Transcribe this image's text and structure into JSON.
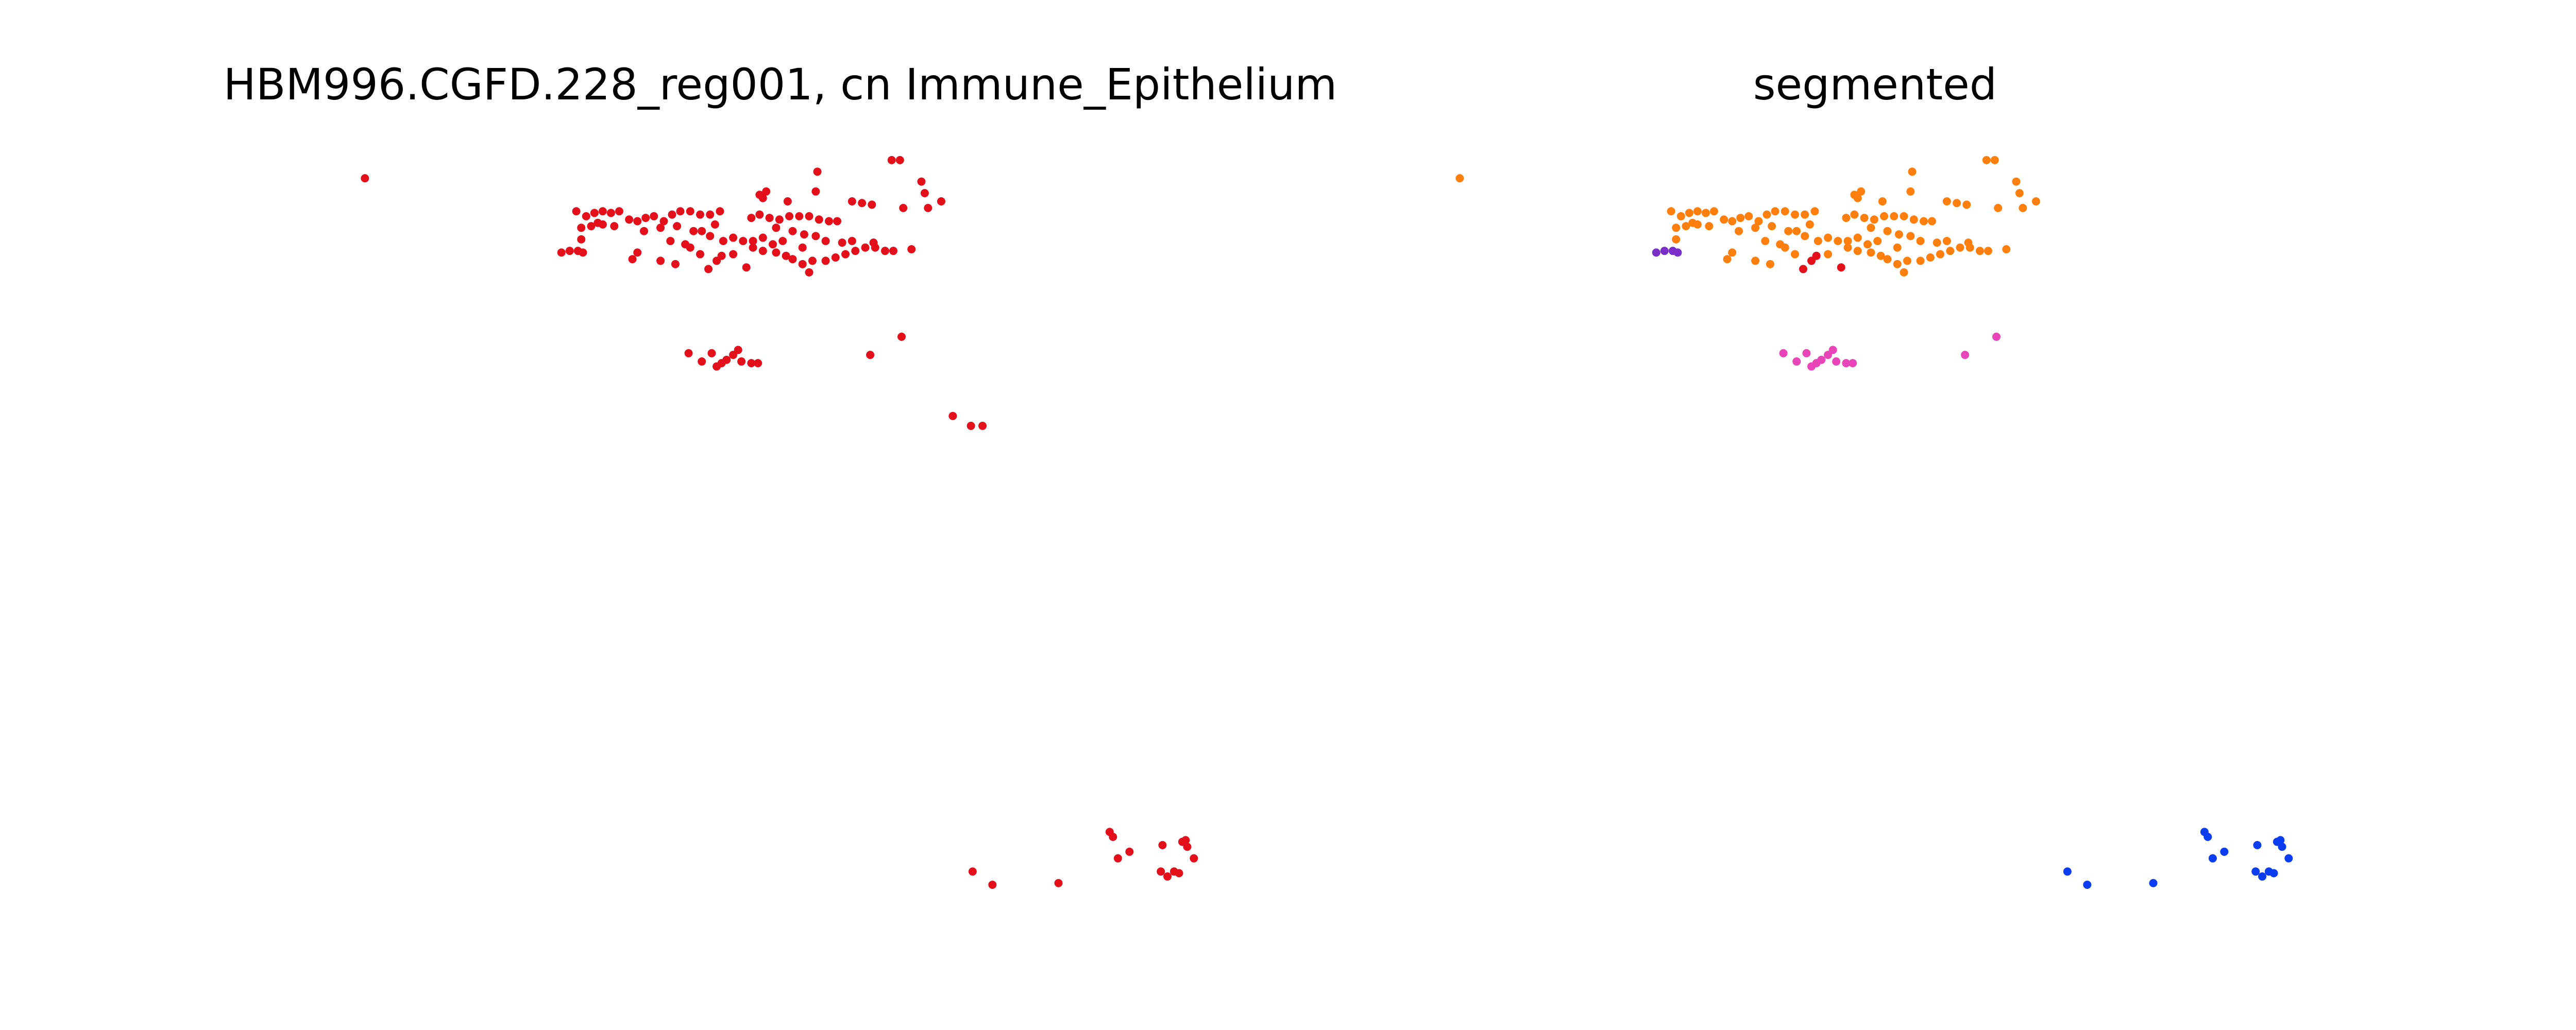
{
  "chart_data": [
    {
      "type": "scatter",
      "title": "HBM996.CGFD.228_reg001, cn Immune_Epithelium",
      "xlim": [
        200,
        745
      ],
      "ylim": [
        560,
        80
      ],
      "series": [
        {
          "color": "#e3101b",
          "x": [
            221,
            540,
            545,
            495,
            558,
            560,
            570,
            562,
            547,
            349,
            355,
            360,
            365,
            370,
            375,
            381,
            386,
            391,
            396,
            402,
            407,
            412,
            418,
            424,
            430,
            436,
            455,
            460,
            466,
            472,
            478,
            484,
            490,
            496,
            502,
            507,
            516,
            522,
            528,
            460,
            464,
            462,
            477,
            494,
            352,
            358,
            365,
            372,
            390,
            400,
            410,
            420,
            430,
            438,
            444,
            450,
            456,
            462,
            468,
            474,
            480,
            487,
            494,
            500,
            352,
            362,
            406,
            415,
            425,
            433,
            470,
            486,
            383,
            386,
            400,
            409,
            418,
            424,
            444,
            456,
            462,
            470,
            476,
            480,
            486,
            490,
            492,
            500,
            506,
            512,
            518,
            524,
            530,
            536,
            541,
            552,
            510,
            516,
            529,
            340,
            345,
            350,
            353,
            429,
            434,
            437,
            452,
            417,
            425,
            431,
            434,
            440,
            444,
            447,
            449,
            455,
            459,
            437,
            527,
            546,
            589,
            601,
            641,
            672,
            674,
            677,
            684,
            704,
            716,
            718,
            719,
            723,
            703,
            707,
            711,
            714,
            577,
            588,
            595
          ],
          "values": [
            108,
            97,
            97,
            104,
            110,
            117,
            122,
            126,
            126,
            128,
            131,
            129,
            128,
            129,
            128,
            133,
            134,
            132,
            131,
            134,
            130,
            128,
            128,
            130,
            130,
            128,
            132,
            130,
            132,
            133,
            131,
            131,
            131,
            133,
            134,
            134,
            122,
            123,
            124,
            118,
            116,
            120,
            122,
            116,
            138,
            137,
            136,
            137,
            140,
            138,
            137,
            140,
            143,
            146,
            144,
            146,
            146,
            144,
            148,
            146,
            140,
            142,
            143,
            146,
            145,
            135,
            146,
            148,
            140,
            136,
            138,
            150,
            157,
            153,
            158,
            160,
            150,
            154,
            154,
            150,
            152,
            153,
            155,
            157,
            160,
            165,
            158,
            158,
            156,
            154,
            152,
            150,
            150,
            152,
            152,
            151,
            147,
            146,
            147,
            153,
            152,
            152,
            153,
            163,
            158,
            155,
            162,
            214,
            219,
            214,
            222,
            218,
            215,
            212,
            219,
            220,
            220,
            220,
            215,
            204,
            528,
            536,
            535,
            504,
            507,
            520,
            516,
            512,
            510,
            509,
            513,
            520,
            528,
            531,
            528,
            529,
            252,
            258,
            258
          ]
        }
      ]
    },
    {
      "type": "scatter",
      "title": "segmented",
      "xlim": [
        200,
        745
      ],
      "ylim": [
        560,
        80
      ],
      "series": [
        {
          "color": "#ff7f0e",
          "x": [
            221,
            540,
            545,
            495,
            558,
            560,
            570,
            562,
            547,
            349,
            355,
            360,
            365,
            370,
            375,
            381,
            386,
            391,
            396,
            402,
            407,
            412,
            418,
            424,
            430,
            436,
            455,
            460,
            466,
            472,
            478,
            484,
            490,
            496,
            502,
            507,
            516,
            522,
            528,
            460,
            464,
            462,
            477,
            494,
            352,
            358,
            365,
            372,
            390,
            400,
            410,
            420,
            430,
            438,
            444,
            450,
            456,
            462,
            468,
            474,
            480,
            487,
            494,
            500,
            352,
            362,
            406,
            415,
            425,
            433,
            470,
            486,
            383,
            386,
            400,
            409,
            418,
            424,
            444,
            456,
            462,
            470,
            476,
            480,
            486,
            490,
            492,
            500,
            506,
            512,
            518,
            524,
            530,
            536,
            541,
            552,
            510,
            516,
            529
          ],
          "values": [
            108,
            97,
            97,
            104,
            110,
            117,
            122,
            126,
            126,
            128,
            131,
            129,
            128,
            129,
            128,
            133,
            134,
            132,
            131,
            134,
            130,
            128,
            128,
            130,
            130,
            128,
            132,
            130,
            132,
            133,
            131,
            131,
            131,
            133,
            134,
            134,
            122,
            123,
            124,
            118,
            116,
            120,
            122,
            116,
            138,
            137,
            136,
            137,
            140,
            138,
            137,
            140,
            143,
            146,
            144,
            146,
            146,
            144,
            148,
            146,
            140,
            142,
            143,
            146,
            145,
            135,
            146,
            148,
            140,
            136,
            138,
            150,
            157,
            153,
            158,
            160,
            150,
            154,
            154,
            150,
            152,
            153,
            155,
            157,
            160,
            165,
            158,
            158,
            156,
            154,
            152,
            150,
            150,
            152,
            152,
            151,
            147,
            146,
            147
          ]
        },
        {
          "color": "#7b2fc9",
          "x": [
            340,
            345,
            350,
            353
          ],
          "values": [
            153,
            152,
            152,
            153
          ]
        },
        {
          "color": "#e3101b",
          "x": [
            429,
            434,
            437,
            452
          ],
          "values": [
            163,
            158,
            155,
            162
          ]
        },
        {
          "color": "#e845b8",
          "x": [
            417,
            425,
            431,
            434,
            440,
            444,
            447,
            449,
            455,
            459,
            437,
            527,
            546
          ],
          "values": [
            214,
            219,
            214,
            222,
            218,
            215,
            212,
            219,
            220,
            220,
            220,
            215,
            204
          ]
        },
        {
          "color": "#0a3cf0",
          "x": [
            589,
            601,
            641,
            672,
            674,
            677,
            684,
            704,
            716,
            718,
            719,
            723,
            703,
            707,
            711,
            714
          ],
          "values": [
            528,
            536,
            535,
            504,
            507,
            520,
            516,
            512,
            510,
            509,
            513,
            520,
            528,
            531,
            528,
            529
          ]
        }
      ]
    }
  ]
}
